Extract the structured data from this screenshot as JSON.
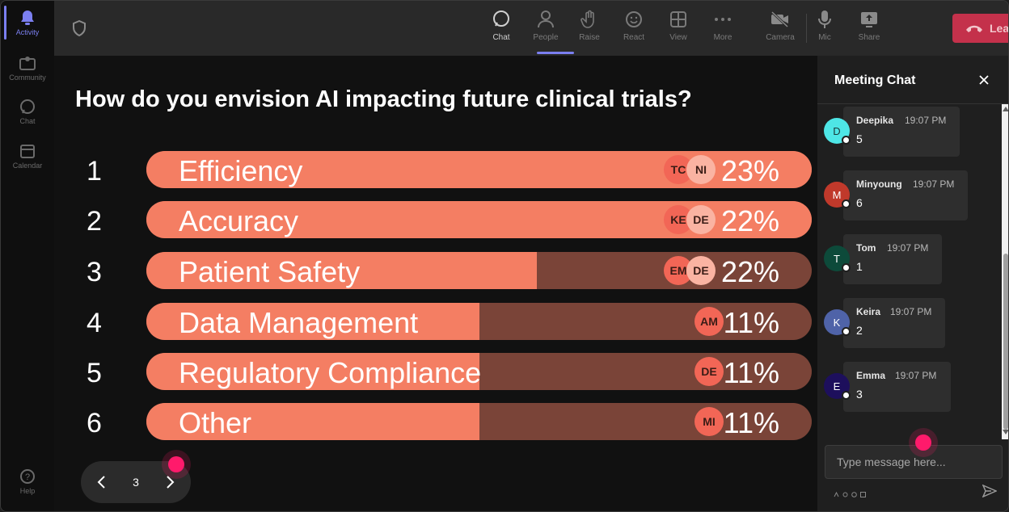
{
  "rail": {
    "items": [
      {
        "label": "Activity",
        "icon": "bell-icon"
      },
      {
        "label": "Community",
        "icon": "community-icon"
      },
      {
        "label": "Chat",
        "icon": "chat-icon"
      },
      {
        "label": "Calendar",
        "icon": "calendar-icon"
      },
      {
        "label": "Help",
        "icon": "help-icon"
      }
    ],
    "active_color": "#7b7ff0"
  },
  "toolbar": {
    "chat": "Chat",
    "people": "People",
    "raise": "Raise",
    "react": "React",
    "view": "View",
    "more": "More",
    "camera": "Camera",
    "mic": "Mic",
    "share": "Share",
    "leave": "Leave",
    "leave_color": "#c4314b"
  },
  "poll": {
    "question": "How do you envision AI impacting future clinical trials?",
    "options": [
      {
        "num": "1",
        "label": "Efficiency",
        "pct": "23%",
        "fill": 1.0,
        "voters": [
          "TC",
          "NI"
        ]
      },
      {
        "num": "2",
        "label": "Accuracy",
        "pct": "22%",
        "fill": 1.0,
        "voters": [
          "KE",
          "DE"
        ]
      },
      {
        "num": "3",
        "label": "Patient Safety",
        "pct": "22%",
        "fill": 0.587,
        "voters": [
          "EM",
          "DE"
        ]
      },
      {
        "num": "4",
        "label": "Data Management",
        "pct": "11%",
        "fill": 0.5,
        "voters": [
          "AM"
        ]
      },
      {
        "num": "5",
        "label": "Regulatory Compliance",
        "pct": "11%",
        "fill": 0.5,
        "voters": [
          "DE"
        ]
      },
      {
        "num": "6",
        "label": "Other",
        "pct": "11%",
        "fill": 0.5,
        "voters": [
          "MI"
        ]
      }
    ],
    "bar_fill_color": "#f47e63",
    "bar_track_color": "#7a4438"
  },
  "pager": {
    "page": "3"
  },
  "chat": {
    "title": "Meeting Chat",
    "messages": [
      {
        "initial": "D",
        "name": "Deepika",
        "time": "19:07 PM",
        "text": "5",
        "color": "#4ee6e6",
        "text_color": "#1a3a3a"
      },
      {
        "initial": "M",
        "name": "Minyoung",
        "time": "19:07 PM",
        "text": "6",
        "color": "#c0392b",
        "text_color": "#ffffff"
      },
      {
        "initial": "T",
        "name": "Tom",
        "time": "19:07 PM",
        "text": "1",
        "color": "#0d4a3a",
        "text_color": "#ffffff"
      },
      {
        "initial": "K",
        "name": "Keira",
        "time": "19:07 PM",
        "text": "2",
        "color": "#4f63a8",
        "text_color": "#ffffff"
      },
      {
        "initial": "E",
        "name": "Emma",
        "time": "19:07 PM",
        "text": "3",
        "color": "#1d0f5c",
        "text_color": "#ffffff"
      }
    ],
    "compose_placeholder": "Type message here..."
  }
}
